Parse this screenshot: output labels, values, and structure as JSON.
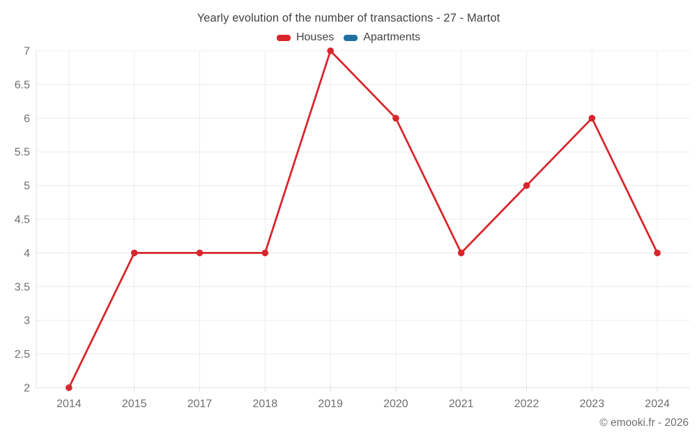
{
  "header": {
    "title": "Yearly evolution of the number of transactions - 27 - Martot"
  },
  "chart_data": {
    "type": "line",
    "title": "Yearly evolution of the number of transactions - 27 - Martot",
    "categories": [
      "2014",
      "2015",
      "2017",
      "2018",
      "2019",
      "2020",
      "2021",
      "2022",
      "2023",
      "2024"
    ],
    "series": [
      {
        "name": "Houses",
        "color": "#d8262c",
        "values": [
          2,
          4,
          4,
          4,
          7,
          6,
          4,
          5,
          6,
          4
        ]
      },
      {
        "name": "Apartments",
        "color": "#1f6f9f",
        "values": []
      }
    ],
    "xlabel": "",
    "ylabel": "",
    "ylim": [
      2,
      7
    ],
    "ytick_step": 0.5,
    "yticks": [
      2,
      2.5,
      3,
      3.5,
      4,
      4.5,
      5,
      5.5,
      6,
      6.5,
      7
    ],
    "grid": true,
    "legend_position": "top",
    "marker": "circle",
    "colors": {
      "grid_line": "#ececec",
      "axis_line": "#e0e0e0",
      "tick_label": "#6e6e6e",
      "title_text": "#424242"
    }
  },
  "footer": {
    "copyright": "© emooki.fr - 2026"
  }
}
